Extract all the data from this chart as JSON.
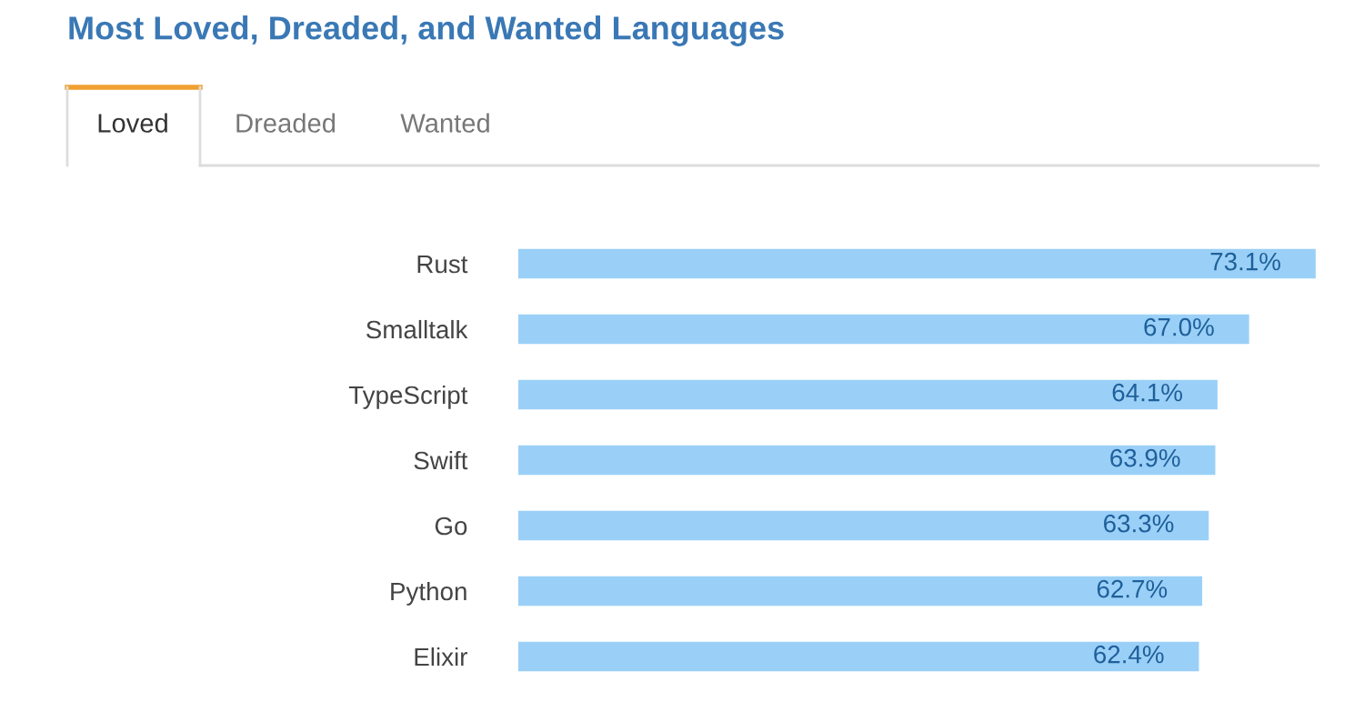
{
  "chart_data": {
    "type": "bar",
    "orientation": "horizontal",
    "title": "Most Loved, Dreaded, and Wanted Languages",
    "annotations": [
      "Loved",
      "Dreaded",
      "Wanted"
    ],
    "categories": [
      "Rust",
      "Smalltalk",
      "TypeScript",
      "Swift",
      "Go",
      "Python",
      "Elixir"
    ],
    "values": [
      73.1,
      67.0,
      64.1,
      63.9,
      63.3,
      62.7,
      62.4
    ],
    "value_labels": [
      "73.1%",
      "67.0%",
      "64.1%",
      "63.9%",
      "63.3%",
      "62.7%",
      "62.4%"
    ],
    "color": "#9ad0f7",
    "grid": false,
    "legend": false
  }
}
